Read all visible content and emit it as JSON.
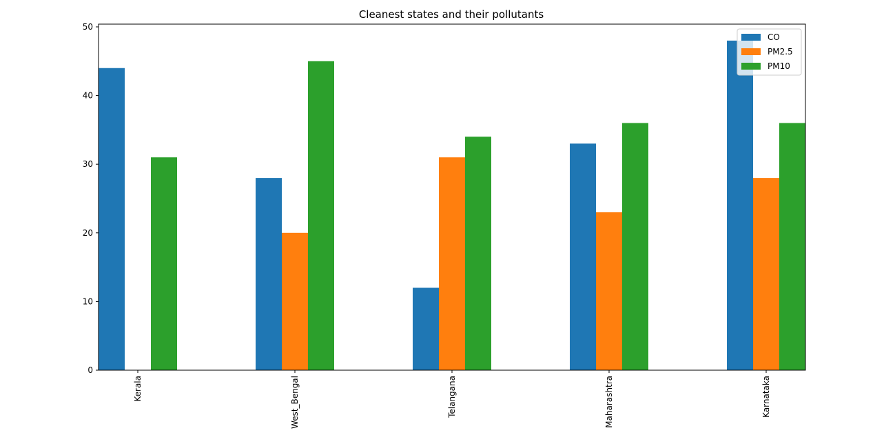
{
  "chart_data": {
    "type": "bar",
    "title": "Cleanest states and their pollutants",
    "xlabel": "",
    "ylabel": "",
    "categories": [
      "Kerala",
      "West_Bengal",
      "Telangana",
      "Maharashtra",
      "Karnataka"
    ],
    "series": [
      {
        "name": "CO",
        "color": "#1f77b4",
        "values": [
          44,
          28,
          12,
          33,
          48
        ]
      },
      {
        "name": "PM2.5",
        "color": "#ff7f0e",
        "values": [
          0,
          20,
          31,
          23,
          28
        ]
      },
      {
        "name": "PM10",
        "color": "#2ca02c",
        "values": [
          31,
          45,
          34,
          36,
          36
        ]
      }
    ],
    "ylim": [
      0,
      50.4
    ],
    "yticks": [
      0,
      10,
      20,
      30,
      40,
      50
    ],
    "xtick_rotation": "vertical",
    "legend_position": "top-right",
    "grid": false
  }
}
